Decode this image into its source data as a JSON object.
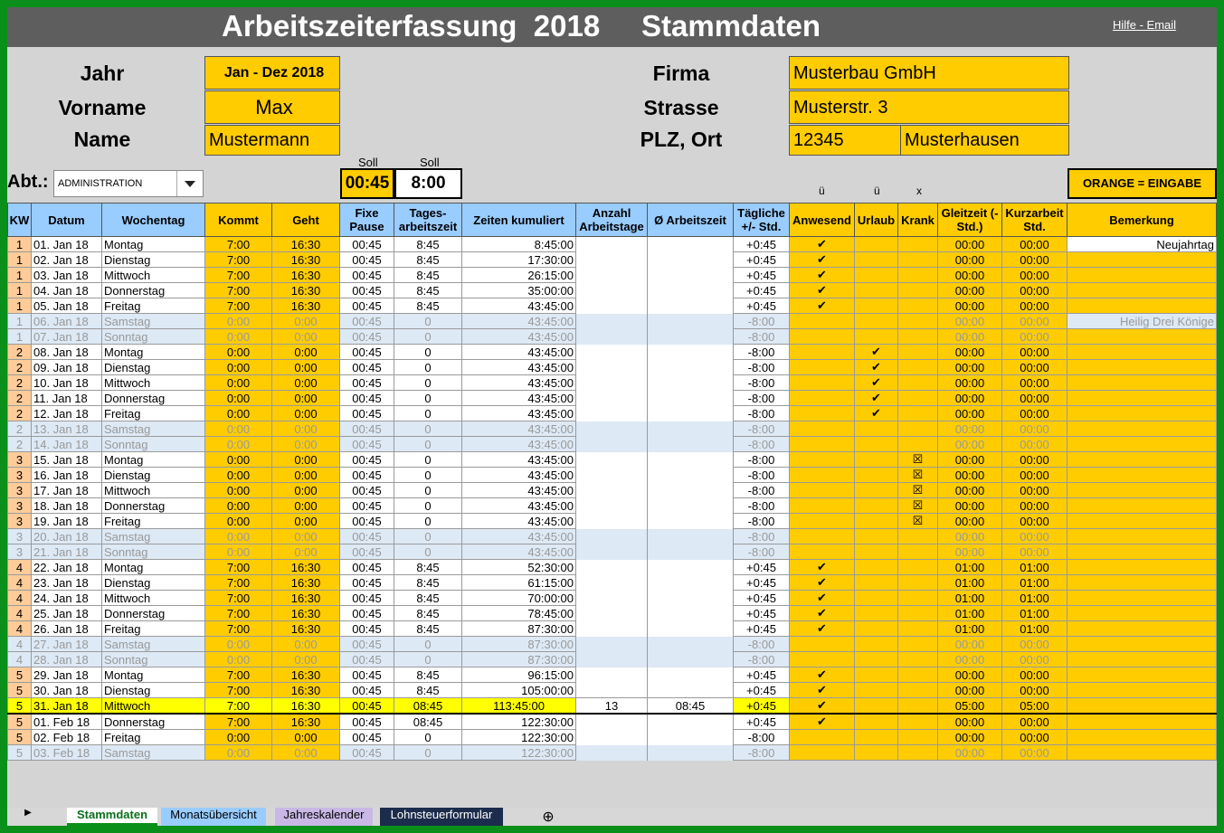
{
  "header": {
    "title": "Arbeitszeiterfassung  2018     Stammdaten",
    "help_link": "Hilfe - Email"
  },
  "master": {
    "jahr_label": "Jahr",
    "jahr_value": "Jan - Dez 2018",
    "vorname_label": "Vorname",
    "vorname_value": "Max",
    "name_label": "Name",
    "name_value": "Mustermann",
    "firma_label": "Firma",
    "firma_value": "Musterbau GmbH",
    "strasse_label": "Strasse",
    "strasse_value": "Musterstr. 3",
    "plzort_label": "PLZ, Ort",
    "plz_value": "12345",
    "ort_value": "Musterhausen",
    "abt_label": "Abt.:",
    "abt_value": "ADMINISTRATION",
    "soll_label": "Soll",
    "soll_pause": "00:45",
    "soll_arbeit": "8:00",
    "mark_anwesend": "ü",
    "mark_urlaub": "ü",
    "mark_krank": "x",
    "legend": "ORANGE = EINGABE"
  },
  "columns": [
    "KW",
    "Datum",
    "Wochentag",
    "Kommt",
    "Geht",
    "Fixe Pause",
    "Tages-arbeitszeit",
    "Zeiten kumuliert",
    "Anzahl Arbeitstage",
    "Ø Arbeitszeit",
    "Tägliche +/- Std.",
    "Anwesend",
    "Urlaub",
    "Krank",
    "Gleitzeit (- Std.)",
    "Kurzarbeit Std.",
    "Bemerkung"
  ],
  "rows": [
    {
      "kw": "1",
      "datum": "01. Jan 18",
      "tag": "Montag",
      "kommt": "7:00",
      "geht": "16:30",
      "pause": "00:45",
      "tages": "8:45",
      "kum": "8:45:00",
      "diff": "+0:45",
      "anw": "✔",
      "url": "",
      "krank": "",
      "gleit": "00:00",
      "kurz": "00:00",
      "bem": "Neujahrtag",
      "we": false
    },
    {
      "kw": "1",
      "datum": "02. Jan 18",
      "tag": "Dienstag",
      "kommt": "7:00",
      "geht": "16:30",
      "pause": "00:45",
      "tages": "8:45",
      "kum": "17:30:00",
      "diff": "+0:45",
      "anw": "✔",
      "url": "",
      "krank": "",
      "gleit": "00:00",
      "kurz": "00:00",
      "bem": "",
      "we": false
    },
    {
      "kw": "1",
      "datum": "03. Jan 18",
      "tag": "Mittwoch",
      "kommt": "7:00",
      "geht": "16:30",
      "pause": "00:45",
      "tages": "8:45",
      "kum": "26:15:00",
      "diff": "+0:45",
      "anw": "✔",
      "url": "",
      "krank": "",
      "gleit": "00:00",
      "kurz": "00:00",
      "bem": "",
      "we": false
    },
    {
      "kw": "1",
      "datum": "04. Jan 18",
      "tag": "Donnerstag",
      "kommt": "7:00",
      "geht": "16:30",
      "pause": "00:45",
      "tages": "8:45",
      "kum": "35:00:00",
      "diff": "+0:45",
      "anw": "✔",
      "url": "",
      "krank": "",
      "gleit": "00:00",
      "kurz": "00:00",
      "bem": "",
      "we": false
    },
    {
      "kw": "1",
      "datum": "05. Jan 18",
      "tag": "Freitag",
      "kommt": "7:00",
      "geht": "16:30",
      "pause": "00:45",
      "tages": "8:45",
      "kum": "43:45:00",
      "diff": "+0:45",
      "anw": "✔",
      "url": "",
      "krank": "",
      "gleit": "00:00",
      "kurz": "00:00",
      "bem": "",
      "we": false
    },
    {
      "kw": "1",
      "datum": "06. Jan 18",
      "tag": "Samstag",
      "kommt": "0:00",
      "geht": "0:00",
      "pause": "00:45",
      "tages": "0",
      "kum": "43:45:00",
      "diff": "-8:00",
      "anw": "",
      "url": "",
      "krank": "",
      "gleit": "00:00",
      "kurz": "00:00",
      "bem": "Heilig Drei Könige",
      "we": true
    },
    {
      "kw": "1",
      "datum": "07. Jan 18",
      "tag": "Sonntag",
      "kommt": "0:00",
      "geht": "0:00",
      "pause": "00:45",
      "tages": "0",
      "kum": "43:45:00",
      "diff": "-8:00",
      "anw": "",
      "url": "",
      "krank": "",
      "gleit": "00:00",
      "kurz": "00:00",
      "bem": "",
      "we": true
    },
    {
      "kw": "2",
      "datum": "08. Jan 18",
      "tag": "Montag",
      "kommt": "0:00",
      "geht": "0:00",
      "pause": "00:45",
      "tages": "0",
      "kum": "43:45:00",
      "diff": "-8:00",
      "anw": "",
      "url": "✔",
      "krank": "",
      "gleit": "00:00",
      "kurz": "00:00",
      "bem": "",
      "we": false
    },
    {
      "kw": "2",
      "datum": "09. Jan 18",
      "tag": "Dienstag",
      "kommt": "0:00",
      "geht": "0:00",
      "pause": "00:45",
      "tages": "0",
      "kum": "43:45:00",
      "diff": "-8:00",
      "anw": "",
      "url": "✔",
      "krank": "",
      "gleit": "00:00",
      "kurz": "00:00",
      "bem": "",
      "we": false
    },
    {
      "kw": "2",
      "datum": "10. Jan 18",
      "tag": "Mittwoch",
      "kommt": "0:00",
      "geht": "0:00",
      "pause": "00:45",
      "tages": "0",
      "kum": "43:45:00",
      "diff": "-8:00",
      "anw": "",
      "url": "✔",
      "krank": "",
      "gleit": "00:00",
      "kurz": "00:00",
      "bem": "",
      "we": false
    },
    {
      "kw": "2",
      "datum": "11. Jan 18",
      "tag": "Donnerstag",
      "kommt": "0:00",
      "geht": "0:00",
      "pause": "00:45",
      "tages": "0",
      "kum": "43:45:00",
      "diff": "-8:00",
      "anw": "",
      "url": "✔",
      "krank": "",
      "gleit": "00:00",
      "kurz": "00:00",
      "bem": "",
      "we": false
    },
    {
      "kw": "2",
      "datum": "12. Jan 18",
      "tag": "Freitag",
      "kommt": "0:00",
      "geht": "0:00",
      "pause": "00:45",
      "tages": "0",
      "kum": "43:45:00",
      "diff": "-8:00",
      "anw": "",
      "url": "✔",
      "krank": "",
      "gleit": "00:00",
      "kurz": "00:00",
      "bem": "",
      "we": false
    },
    {
      "kw": "2",
      "datum": "13. Jan 18",
      "tag": "Samstag",
      "kommt": "0:00",
      "geht": "0:00",
      "pause": "00:45",
      "tages": "0",
      "kum": "43:45:00",
      "diff": "-8:00",
      "anw": "",
      "url": "",
      "krank": "",
      "gleit": "00:00",
      "kurz": "00:00",
      "bem": "",
      "we": true
    },
    {
      "kw": "2",
      "datum": "14. Jan 18",
      "tag": "Sonntag",
      "kommt": "0:00",
      "geht": "0:00",
      "pause": "00:45",
      "tages": "0",
      "kum": "43:45:00",
      "diff": "-8:00",
      "anw": "",
      "url": "",
      "krank": "",
      "gleit": "00:00",
      "kurz": "00:00",
      "bem": "",
      "we": true
    },
    {
      "kw": "3",
      "datum": "15. Jan 18",
      "tag": "Montag",
      "kommt": "0:00",
      "geht": "0:00",
      "pause": "00:45",
      "tages": "0",
      "kum": "43:45:00",
      "diff": "-8:00",
      "anw": "",
      "url": "",
      "krank": "☒",
      "gleit": "00:00",
      "kurz": "00:00",
      "bem": "",
      "we": false
    },
    {
      "kw": "3",
      "datum": "16. Jan 18",
      "tag": "Dienstag",
      "kommt": "0:00",
      "geht": "0:00",
      "pause": "00:45",
      "tages": "0",
      "kum": "43:45:00",
      "diff": "-8:00",
      "anw": "",
      "url": "",
      "krank": "☒",
      "gleit": "00:00",
      "kurz": "00:00",
      "bem": "",
      "we": false
    },
    {
      "kw": "3",
      "datum": "17. Jan 18",
      "tag": "Mittwoch",
      "kommt": "0:00",
      "geht": "0:00",
      "pause": "00:45",
      "tages": "0",
      "kum": "43:45:00",
      "diff": "-8:00",
      "anw": "",
      "url": "",
      "krank": "☒",
      "gleit": "00:00",
      "kurz": "00:00",
      "bem": "",
      "we": false
    },
    {
      "kw": "3",
      "datum": "18. Jan 18",
      "tag": "Donnerstag",
      "kommt": "0:00",
      "geht": "0:00",
      "pause": "00:45",
      "tages": "0",
      "kum": "43:45:00",
      "diff": "-8:00",
      "anw": "",
      "url": "",
      "krank": "☒",
      "gleit": "00:00",
      "kurz": "00:00",
      "bem": "",
      "we": false
    },
    {
      "kw": "3",
      "datum": "19. Jan 18",
      "tag": "Freitag",
      "kommt": "0:00",
      "geht": "0:00",
      "pause": "00:45",
      "tages": "0",
      "kum": "43:45:00",
      "diff": "-8:00",
      "anw": "",
      "url": "",
      "krank": "☒",
      "gleit": "00:00",
      "kurz": "00:00",
      "bem": "",
      "we": false
    },
    {
      "kw": "3",
      "datum": "20. Jan 18",
      "tag": "Samstag",
      "kommt": "0:00",
      "geht": "0:00",
      "pause": "00:45",
      "tages": "0",
      "kum": "43:45:00",
      "diff": "-8:00",
      "anw": "",
      "url": "",
      "krank": "",
      "gleit": "00:00",
      "kurz": "00:00",
      "bem": "",
      "we": true
    },
    {
      "kw": "3",
      "datum": "21. Jan 18",
      "tag": "Sonntag",
      "kommt": "0:00",
      "geht": "0:00",
      "pause": "00:45",
      "tages": "0",
      "kum": "43:45:00",
      "diff": "-8:00",
      "anw": "",
      "url": "",
      "krank": "",
      "gleit": "00:00",
      "kurz": "00:00",
      "bem": "",
      "we": true
    },
    {
      "kw": "4",
      "datum": "22. Jan 18",
      "tag": "Montag",
      "kommt": "7:00",
      "geht": "16:30",
      "pause": "00:45",
      "tages": "8:45",
      "kum": "52:30:00",
      "diff": "+0:45",
      "anw": "✔",
      "url": "",
      "krank": "",
      "gleit": "01:00",
      "kurz": "01:00",
      "bem": "",
      "we": false
    },
    {
      "kw": "4",
      "datum": "23. Jan 18",
      "tag": "Dienstag",
      "kommt": "7:00",
      "geht": "16:30",
      "pause": "00:45",
      "tages": "8:45",
      "kum": "61:15:00",
      "diff": "+0:45",
      "anw": "✔",
      "url": "",
      "krank": "",
      "gleit": "01:00",
      "kurz": "01:00",
      "bem": "",
      "we": false
    },
    {
      "kw": "4",
      "datum": "24. Jan 18",
      "tag": "Mittwoch",
      "kommt": "7:00",
      "geht": "16:30",
      "pause": "00:45",
      "tages": "8:45",
      "kum": "70:00:00",
      "diff": "+0:45",
      "anw": "✔",
      "url": "",
      "krank": "",
      "gleit": "01:00",
      "kurz": "01:00",
      "bem": "",
      "we": false
    },
    {
      "kw": "4",
      "datum": "25. Jan 18",
      "tag": "Donnerstag",
      "kommt": "7:00",
      "geht": "16:30",
      "pause": "00:45",
      "tages": "8:45",
      "kum": "78:45:00",
      "diff": "+0:45",
      "anw": "✔",
      "url": "",
      "krank": "",
      "gleit": "01:00",
      "kurz": "01:00",
      "bem": "",
      "we": false
    },
    {
      "kw": "4",
      "datum": "26. Jan 18",
      "tag": "Freitag",
      "kommt": "7:00",
      "geht": "16:30",
      "pause": "00:45",
      "tages": "8:45",
      "kum": "87:30:00",
      "diff": "+0:45",
      "anw": "✔",
      "url": "",
      "krank": "",
      "gleit": "01:00",
      "kurz": "01:00",
      "bem": "",
      "we": false
    },
    {
      "kw": "4",
      "datum": "27. Jan 18",
      "tag": "Samstag",
      "kommt": "0:00",
      "geht": "0:00",
      "pause": "00:45",
      "tages": "0",
      "kum": "87:30:00",
      "diff": "-8:00",
      "anw": "",
      "url": "",
      "krank": "",
      "gleit": "00:00",
      "kurz": "00:00",
      "bem": "",
      "we": true
    },
    {
      "kw": "4",
      "datum": "28. Jan 18",
      "tag": "Sonntag",
      "kommt": "0:00",
      "geht": "0:00",
      "pause": "00:45",
      "tages": "0",
      "kum": "87:30:00",
      "diff": "-8:00",
      "anw": "",
      "url": "",
      "krank": "",
      "gleit": "00:00",
      "kurz": "00:00",
      "bem": "",
      "we": true
    },
    {
      "kw": "5",
      "datum": "29. Jan 18",
      "tag": "Montag",
      "kommt": "7:00",
      "geht": "16:30",
      "pause": "00:45",
      "tages": "8:45",
      "kum": "96:15:00",
      "diff": "+0:45",
      "anw": "✔",
      "url": "",
      "krank": "",
      "gleit": "00:00",
      "kurz": "00:00",
      "bem": "",
      "we": false
    },
    {
      "kw": "5",
      "datum": "30. Jan 18",
      "tag": "Dienstag",
      "kommt": "7:00",
      "geht": "16:30",
      "pause": "00:45",
      "tages": "8:45",
      "kum": "105:00:00",
      "diff": "+0:45",
      "anw": "✔",
      "url": "",
      "krank": "",
      "gleit": "00:00",
      "kurz": "00:00",
      "bem": "",
      "we": false
    }
  ],
  "month_total": {
    "kw": "5",
    "datum": "31. Jan 18",
    "tag": "Mittwoch",
    "kommt": "7:00",
    "geht": "16:30",
    "pause": "00:45",
    "tages": "08:45",
    "kum": "113:45:00",
    "tage": "13",
    "avg": "08:45",
    "diff": "+0:45",
    "anw": "✔",
    "gleit": "05:00",
    "kurz": "05:00"
  },
  "rows_after": [
    {
      "kw": "5",
      "datum": "01. Feb 18",
      "tag": "Donnerstag",
      "kommt": "7:00",
      "geht": "16:30",
      "pause": "00:45",
      "tages": "08:45",
      "kum": "122:30:00",
      "diff": "+0:45",
      "anw": "✔",
      "url": "",
      "krank": "",
      "gleit": "00:00",
      "kurz": "00:00",
      "bem": "",
      "we": false
    },
    {
      "kw": "5",
      "datum": "02. Feb 18",
      "tag": "Freitag",
      "kommt": "0:00",
      "geht": "0:00",
      "pause": "00:45",
      "tages": "0",
      "kum": "122:30:00",
      "diff": "-8:00",
      "anw": "",
      "url": "",
      "krank": "",
      "gleit": "00:00",
      "kurz": "00:00",
      "bem": "",
      "we": false
    },
    {
      "kw": "5",
      "datum": "03. Feb 18",
      "tag": "Samstag",
      "kommt": "0:00",
      "geht": "0:00",
      "pause": "00:45",
      "tages": "0",
      "kum": "122:30:00",
      "diff": "-8:00",
      "anw": "",
      "url": "",
      "krank": "",
      "gleit": "00:00",
      "kurz": "00:00",
      "bem": "",
      "we": true
    }
  ],
  "tabs": [
    "Stammdaten",
    "Monatsübersicht",
    "Jahreskalender",
    "Lohnsteuerformular"
  ]
}
